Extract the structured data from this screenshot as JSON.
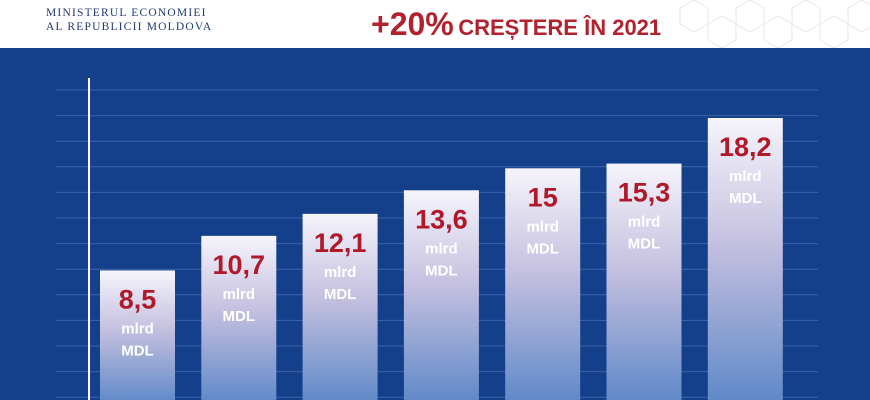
{
  "header": {
    "ministry_line1": "MINISTERUL ECONOMIEI",
    "ministry_line2": "AL REPUBLICII MOLDOVA",
    "headline_pct": "+20%",
    "headline_text": "CREȘTERE ÎN 2021"
  },
  "colors": {
    "background": "#143f8a",
    "accent": "#b0192a",
    "brand_navy": "#233a6e"
  },
  "chart_data": {
    "type": "bar",
    "title": "+20% CREȘTERE ÎN 2021",
    "values": [
      8.5,
      10.7,
      12.1,
      13.6,
      15,
      15.3,
      18.2
    ],
    "labels": [
      "8,5",
      "10,7",
      "12,1",
      "13,6",
      "15",
      "15,3",
      "18,2"
    ],
    "unit_line1": "mlrd",
    "unit_line2": "MDL",
    "categories": [],
    "xlabel": "",
    "ylabel": "",
    "grid": true
  }
}
